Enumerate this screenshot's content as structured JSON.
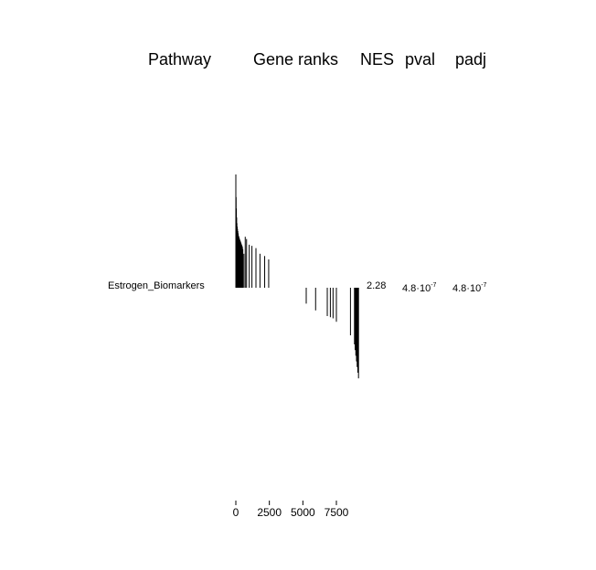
{
  "headers": {
    "pathway": "Pathway",
    "gene_ranks": "Gene ranks",
    "nes": "NES",
    "pval": "pval",
    "padj": "padj"
  },
  "chart_data": {
    "type": "barcode",
    "rows": [
      {
        "pathway": "Estrogen_Biomarkers",
        "nes": "2.28",
        "pval": {
          "mantissa": "4.8",
          "exponent": "-7"
        },
        "padj": {
          "mantissa": "4.8",
          "exponent": "-7"
        },
        "bar_color": "#000000",
        "gene_hits": [
          {
            "rank": 0,
            "stat": 1.0
          },
          {
            "rank": 20,
            "stat": 0.8
          },
          {
            "rank": 40,
            "stat": 0.7
          },
          {
            "rank": 60,
            "stat": 0.62
          },
          {
            "rank": 80,
            "stat": 0.57
          },
          {
            "rank": 100,
            "stat": 0.54
          },
          {
            "rank": 125,
            "stat": 0.52
          },
          {
            "rank": 150,
            "stat": 0.5
          },
          {
            "rank": 175,
            "stat": 0.48
          },
          {
            "rank": 200,
            "stat": 0.46
          },
          {
            "rank": 225,
            "stat": 0.45
          },
          {
            "rank": 250,
            "stat": 0.44
          },
          {
            "rank": 280,
            "stat": 0.43
          },
          {
            "rank": 310,
            "stat": 0.42
          },
          {
            "rank": 340,
            "stat": 0.41
          },
          {
            "rank": 370,
            "stat": 0.4
          },
          {
            "rank": 400,
            "stat": 0.39
          },
          {
            "rank": 430,
            "stat": 0.38
          },
          {
            "rank": 460,
            "stat": 0.37
          },
          {
            "rank": 490,
            "stat": 0.36
          },
          {
            "rank": 520,
            "stat": 0.34
          },
          {
            "rank": 600,
            "stat": 0.3
          },
          {
            "rank": 700,
            "stat": 0.45
          },
          {
            "rank": 800,
            "stat": 0.43
          },
          {
            "rank": 1000,
            "stat": 0.38
          },
          {
            "rank": 1200,
            "stat": 0.37
          },
          {
            "rank": 1500,
            "stat": 0.35
          },
          {
            "rank": 1800,
            "stat": 0.3
          },
          {
            "rank": 2150,
            "stat": 0.28
          },
          {
            "rank": 2450,
            "stat": 0.25
          },
          {
            "rank": 5250,
            "stat": -0.14
          },
          {
            "rank": 5950,
            "stat": -0.2
          },
          {
            "rank": 6820,
            "stat": -0.25
          },
          {
            "rank": 7050,
            "stat": -0.26
          },
          {
            "rank": 7250,
            "stat": -0.27
          },
          {
            "rank": 7500,
            "stat": -0.3
          },
          {
            "rank": 8550,
            "stat": -0.42
          },
          {
            "rank": 8850,
            "stat": -0.5
          },
          {
            "rank": 8900,
            "stat": -0.55
          },
          {
            "rank": 8950,
            "stat": -0.6
          },
          {
            "rank": 9000,
            "stat": -0.65
          },
          {
            "rank": 9050,
            "stat": -0.7
          },
          {
            "rank": 9100,
            "stat": -0.75
          },
          {
            "rank": 9150,
            "stat": -0.8
          }
        ]
      }
    ],
    "x_axis": {
      "ticks": [
        "0",
        "2500",
        "5000",
        "7500"
      ],
      "tick_values": [
        0,
        2500,
        5000,
        7500
      ],
      "range": [
        0,
        9200
      ]
    },
    "y_range": [
      -1,
      1
    ],
    "grid": false,
    "legend": "none"
  }
}
